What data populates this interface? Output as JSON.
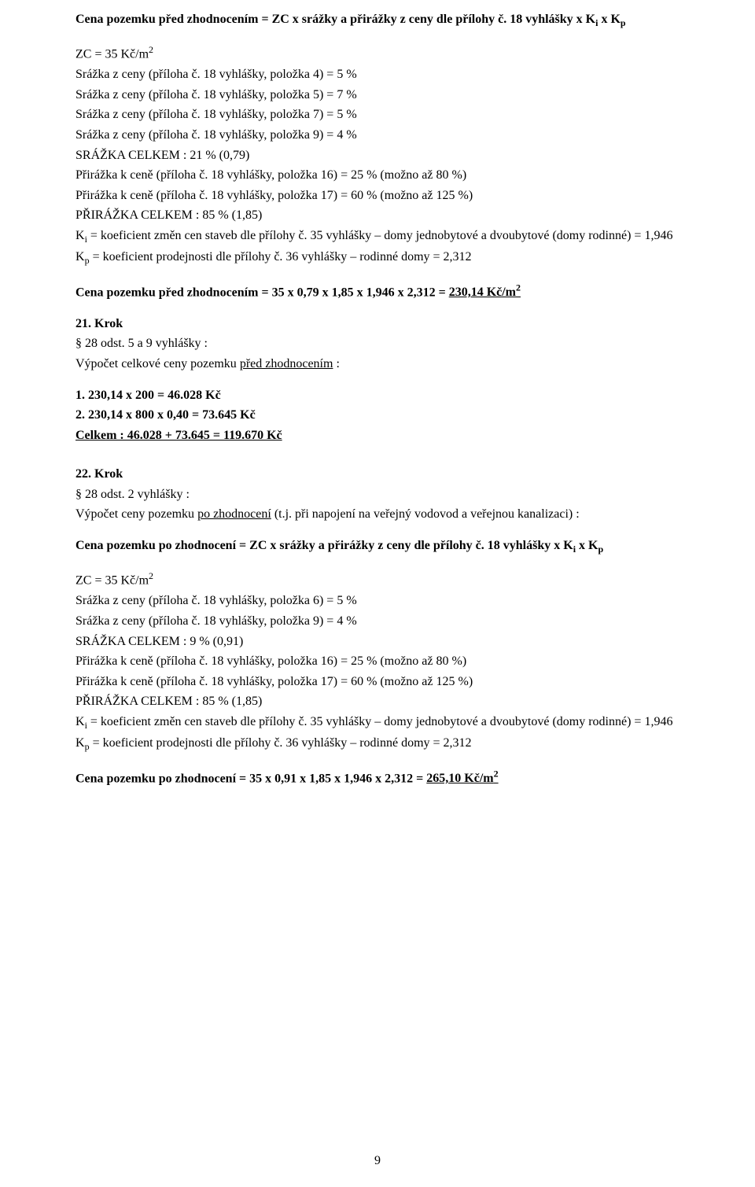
{
  "sec1": {
    "heading_html": "Cena pozemku před zhodnocením = ZC x srážky a přirážky z ceny dle přílohy č. 18 vyhlášky x K<sub>i</sub> x  K<sub>p</sub>",
    "lines": [
      "ZC = 35  Kč/m<sup>2</sup>",
      "Srážka z ceny (příloha č. 18 vyhlášky, položka 4) = 5 %",
      "Srážka z ceny (příloha č. 18 vyhlášky, položka 5) = 7 %",
      "Srážka z ceny (příloha č. 18 vyhlášky, položka 7) = 5 %",
      "Srážka z ceny (příloha č. 18 vyhlášky, položka 9) = 4 %",
      "SRÁŽKA CELKEM : 21 % (0,79)",
      "Přirážka k ceně (příloha č. 18 vyhlášky, položka 16) =  25 % (možno až 80 %)",
      "Přirážka k ceně (příloha č. 18 vyhlášky, položka 17) =  60 % (možno až 125 %)",
      "PŘIRÁŽKA CELKEM :  85 % (1,85)"
    ],
    "ki_html": "K<sub>i</sub>  =  koeficient změn cen staveb dle přílohy č. 35 vyhlášky – domy jednobytové a dvoubytové  (domy rodinné) = 1,946",
    "kp_html": "K<sub>p</sub>  = koeficient prodejnosti dle přílohy č. 36 vyhlášky – rodinné domy = 2,312",
    "result_html": "Cena pozemku před zhodnocením = 35 x 0,79 x 1,85 x 1,946 x 2,312 = <span class=\"underline\">230,14 Kč/m<sup>2</sup></span>"
  },
  "krok21": {
    "title": "21. Krok",
    "sub": "§ 28 odst. 5 a 9  vyhlášky :",
    "desc_html": "Výpočet celkové ceny pozemku <span class=\"underline\">před zhodnocením</span> :",
    "calc": [
      "1.  230,14 x 200 =  46.028 Kč",
      "2. 230,14 x 800 x 0,40 = 73.645 Kč"
    ],
    "total_html": "<span class=\"underline\">Celkem :  46.028 + 73.645 = 119.670 Kč</span>"
  },
  "krok22": {
    "title": "22. Krok",
    "sub": "§ 28 odst. 2 vyhlášky :",
    "desc_html": "Výpočet ceny pozemku <span class=\"underline\">po  zhodnocení</span> (t.j. při napojení na veřejný vodovod a veřejnou kanalizaci) :",
    "heading_html": "Cena pozemku po zhodnocení = ZC x srážky a přirážky z ceny dle přílohy č. 18 vyhlášky x K<sub>i</sub> x  K<sub>p</sub>",
    "lines": [
      "ZC = 35  Kč/m<sup>2</sup>",
      "Srážka z ceny (příloha č. 18 vyhlášky, položka 6) = 5 %",
      "Srážka z ceny (příloha č. 18 vyhlášky, položka 9) = 4 %",
      "SRÁŽKA CELKEM :  9 % (0,91)",
      "Přirážka k ceně (příloha č. 18 vyhlášky, položka 16) =  25 % (možno až 80 %)",
      "Přirážka k ceně (příloha č. 18 vyhlášky, položka 17) =  60 % (možno až 125 %)",
      "PŘIRÁŽKA CELKEM :  85 % (1,85)"
    ],
    "ki_html": "K<sub>i</sub>  =  koeficient změn cen staveb dle přílohy č. 35 vyhlášky – domy jednobytové a dvoubytové  (domy rodinné) = 1,946",
    "kp_html": "K<sub>p</sub>  = koeficient prodejnosti dle přílohy č. 36 vyhlášky – rodinné domy = 2,312",
    "result_html": "Cena pozemku po zhodnocení = 35 x 0,91 x 1,85 x 1,946 x 2,312 = <span class=\"underline\">265,10 Kč/m<sup>2</sup></span>"
  },
  "pagenum": "9"
}
